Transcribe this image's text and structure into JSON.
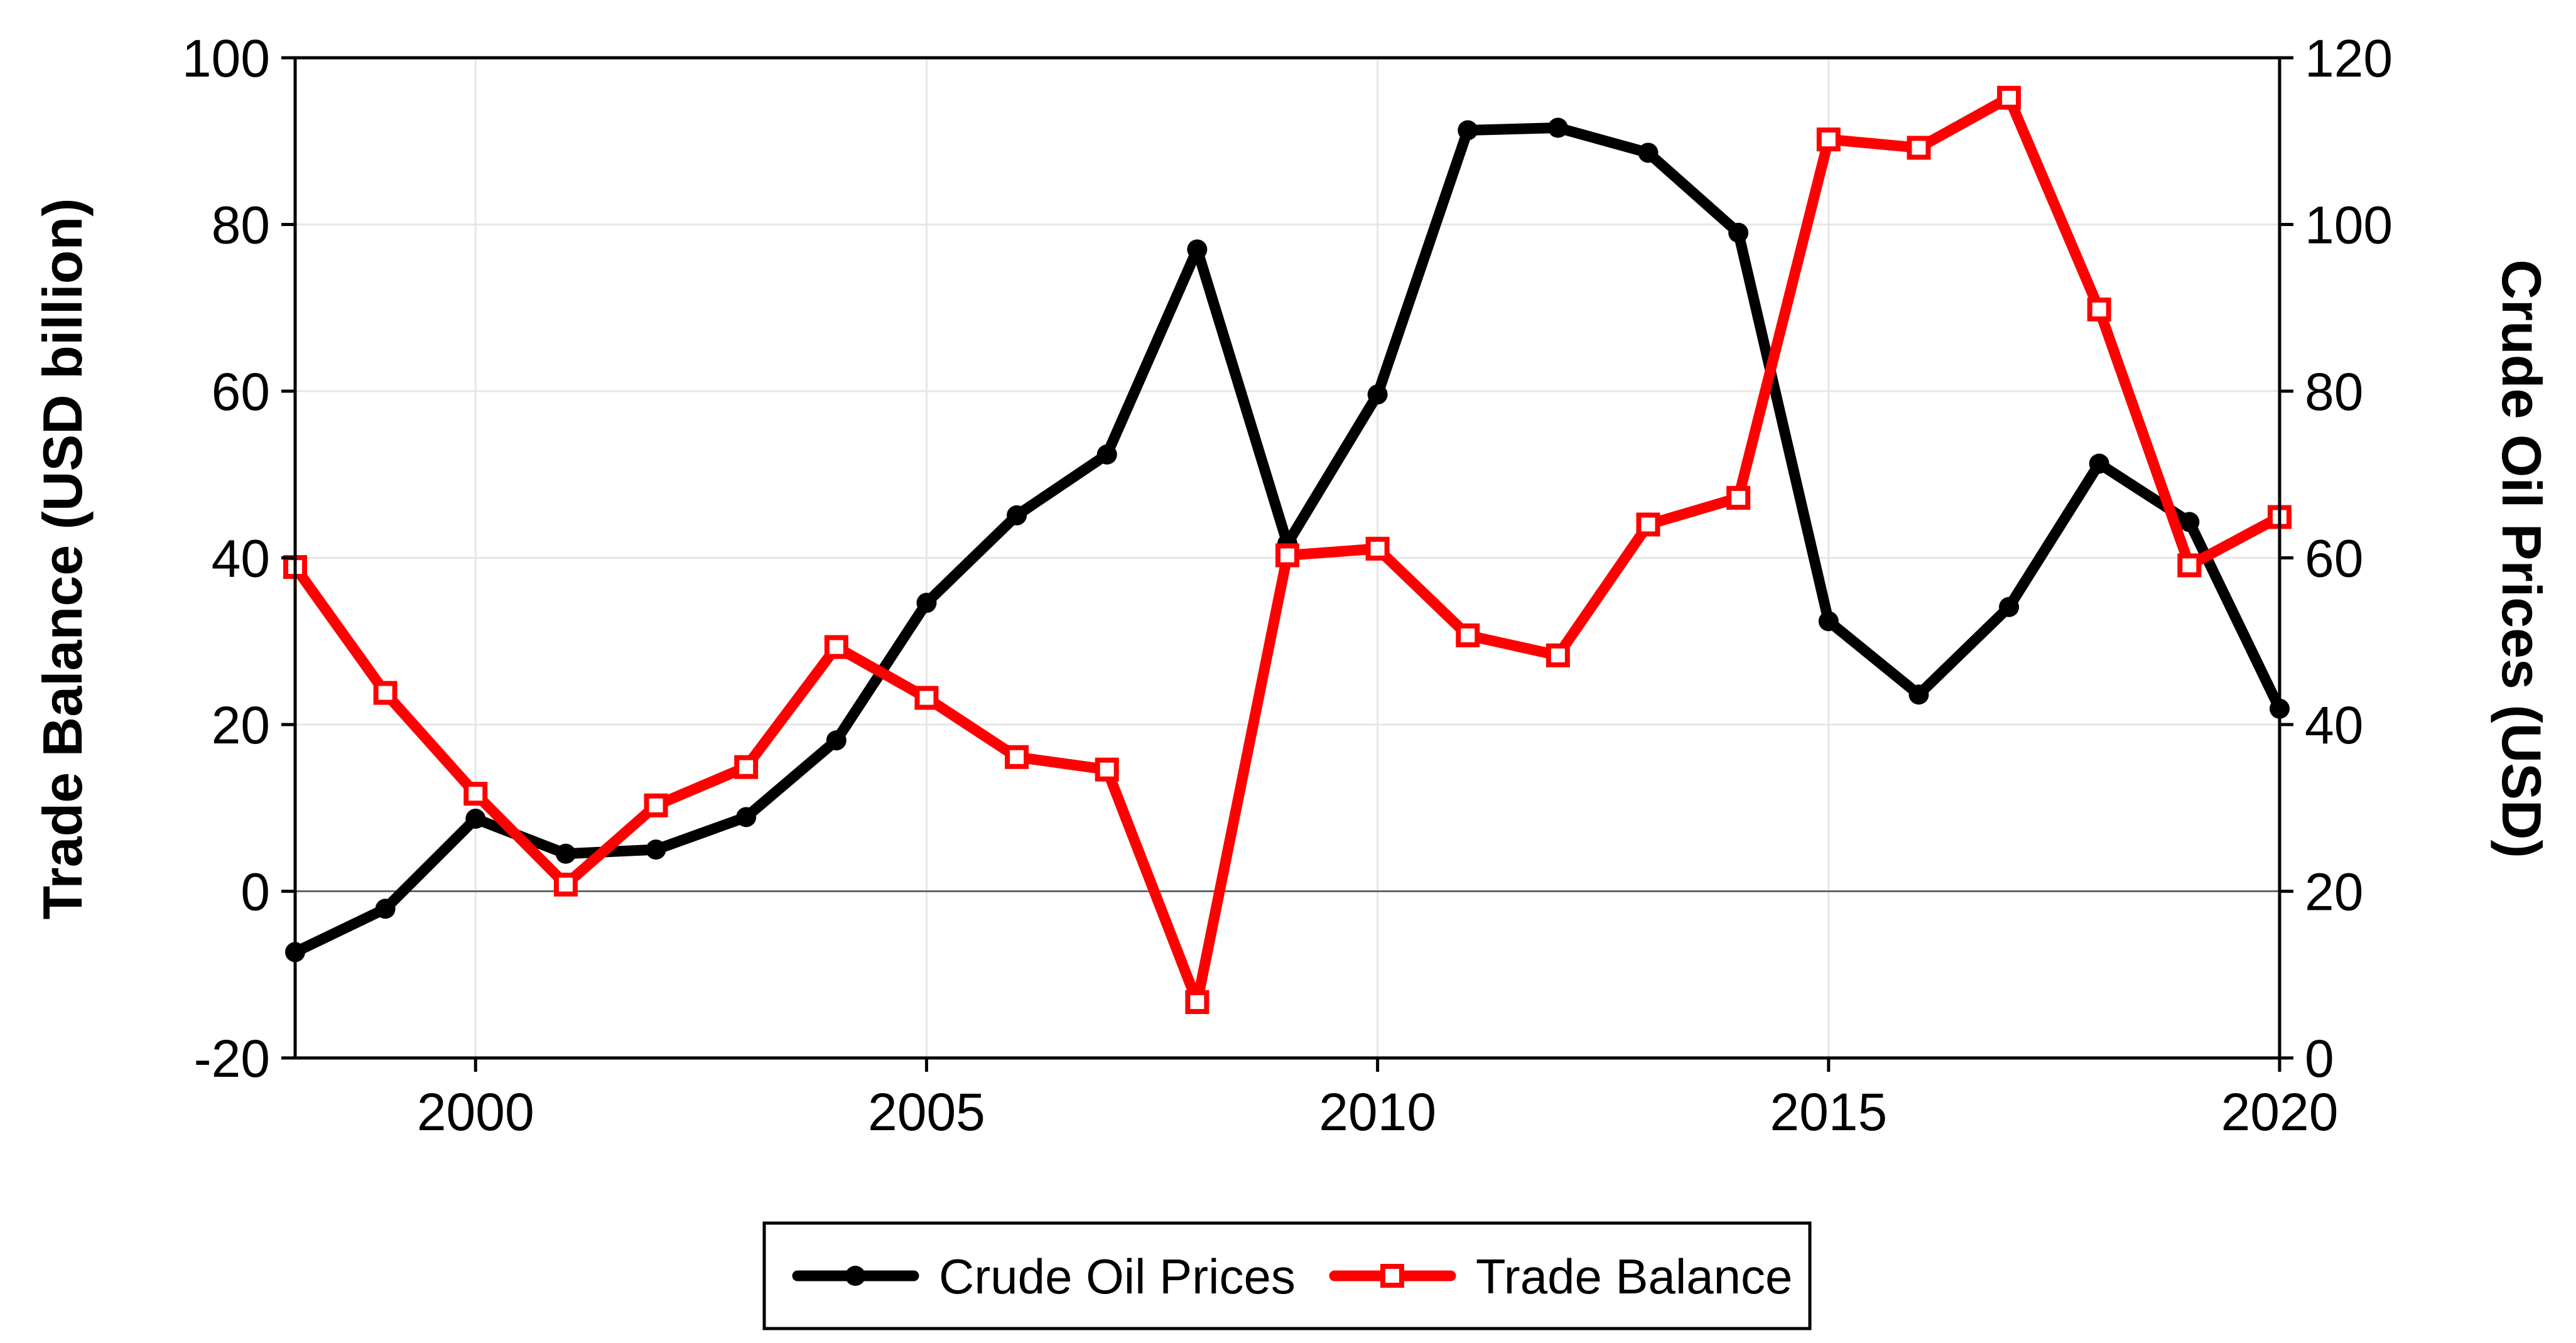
{
  "chart_data": {
    "type": "line",
    "title": "",
    "x": [
      1998,
      1999,
      2000,
      2001,
      2002,
      2003,
      2004,
      2005,
      2006,
      2007,
      2008,
      2009,
      2010,
      2011,
      2012,
      2013,
      2014,
      2015,
      2016,
      2017,
      2018,
      2019,
      2020
    ],
    "xlim": [
      1998,
      2020
    ],
    "x_ticks": [
      2000,
      2005,
      2010,
      2015,
      2020
    ],
    "x_tick_labels": [
      "2000",
      "2005",
      "2010",
      "2015",
      "2020"
    ],
    "ylabel_left": "Trade Balance (USD billion)",
    "ylabel_right": "Crude Oil Prices (USD)",
    "ylim_left": [
      -20,
      100
    ],
    "ylim_right": [
      0,
      120
    ],
    "y_ticks_left": [
      "-20",
      "0",
      "20",
      "40",
      "60",
      "80",
      "100"
    ],
    "y_ticks_right": [
      "0",
      "20",
      "40",
      "60",
      "80",
      "100",
      "120"
    ],
    "grid": true,
    "legend_position": "bottom",
    "series": [
      {
        "name": "Crude Oil Prices",
        "axis": "right",
        "color": "#000000",
        "marker": "filled-circle",
        "values": [
          12.7,
          17.9,
          28.7,
          24.5,
          25.0,
          28.9,
          38.1,
          54.6,
          65.1,
          72.4,
          97.0,
          61.7,
          79.6,
          111.3,
          111.6,
          108.6,
          99.0,
          52.4,
          43.6,
          54.1,
          71.3,
          64.3,
          41.9
        ]
      },
      {
        "name": "Trade Balance",
        "axis": "left",
        "color": "#ff0000",
        "marker": "open-square",
        "values": [
          38.9,
          23.8,
          11.7,
          0.8,
          10.3,
          14.9,
          29.3,
          23.2,
          16.1,
          14.6,
          -13.3,
          40.3,
          41.1,
          30.7,
          28.3,
          44.0,
          47.2,
          90.2,
          89.2,
          95.2,
          69.8,
          39.1,
          44.9
        ]
      }
    ]
  }
}
